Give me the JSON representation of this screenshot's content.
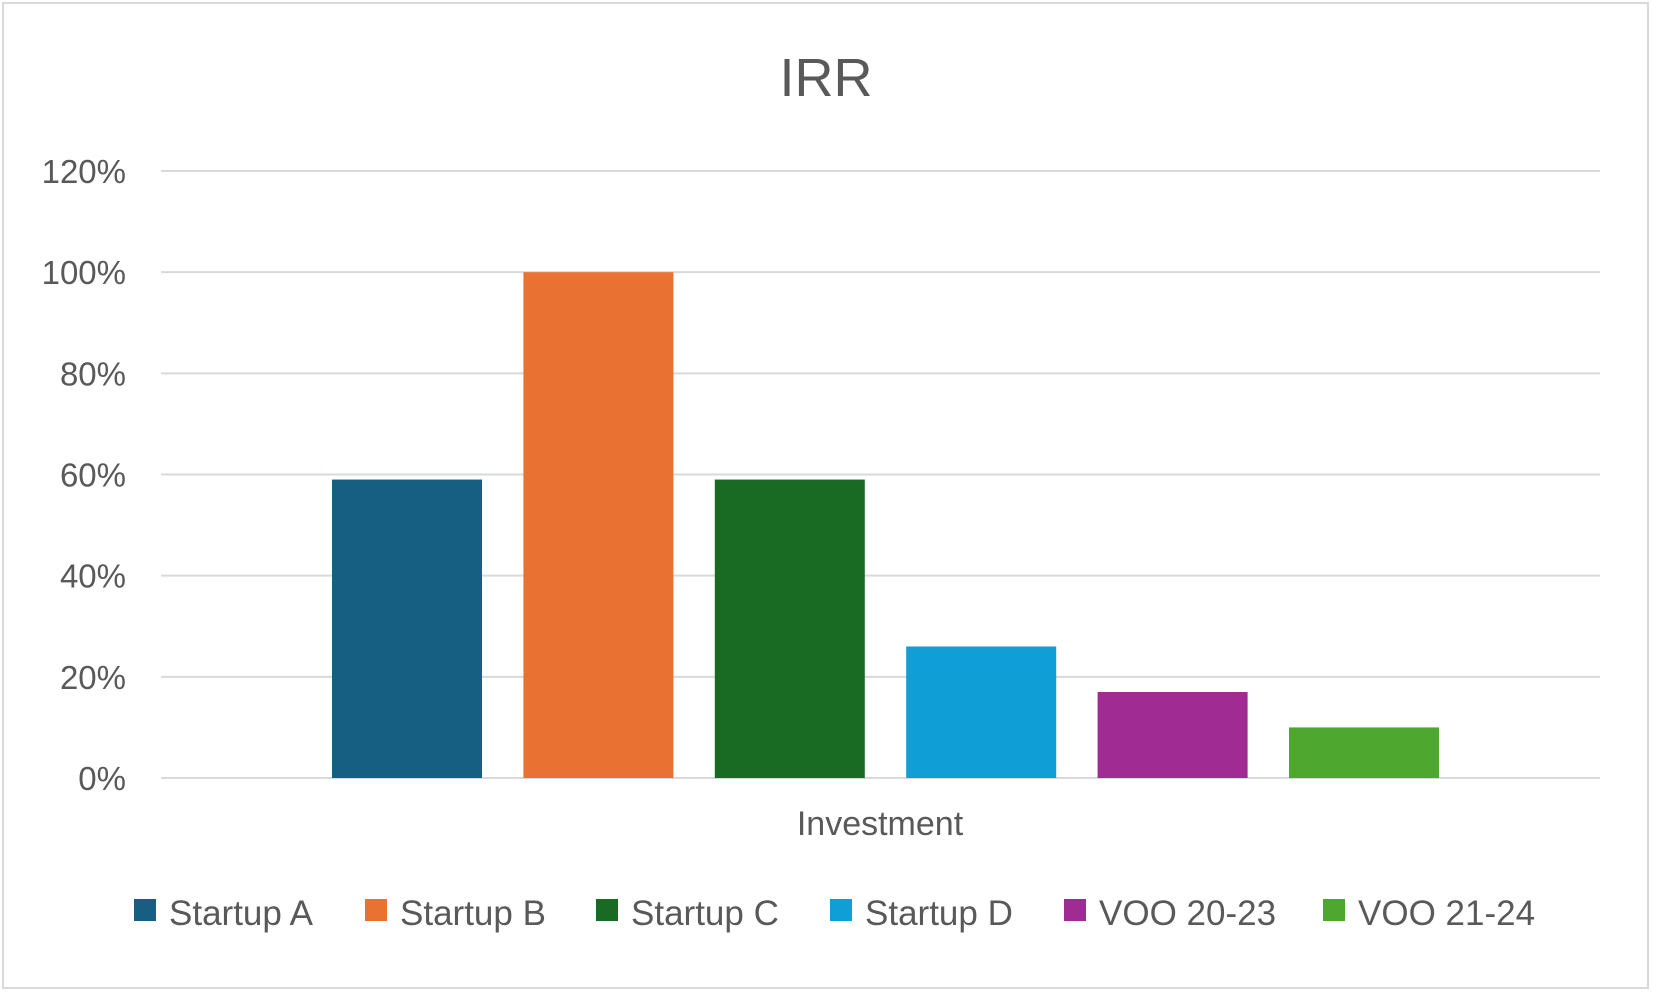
{
  "chart_data": {
    "type": "bar",
    "title": "IRR",
    "xlabel": "Investment",
    "ylabel": "",
    "categories": [
      "Investment"
    ],
    "series": [
      {
        "name": "Startup A",
        "values": [
          0.59
        ],
        "color": "#175f82"
      },
      {
        "name": "Startup B",
        "values": [
          1.0
        ],
        "color": "#e97132"
      },
      {
        "name": "Startup C",
        "values": [
          0.59
        ],
        "color": "#196b24"
      },
      {
        "name": "Startup D",
        "values": [
          0.26
        ],
        "color": "#0f9ed5"
      },
      {
        "name": "VOO 20-23",
        "values": [
          0.17
        ],
        "color": "#a02b93"
      },
      {
        "name": "VOO 21-24",
        "values": [
          0.1
        ],
        "color": "#4ea72e"
      }
    ],
    "ylim": [
      0,
      1.2
    ],
    "yticks": [
      0,
      0.2,
      0.4,
      0.6,
      0.8,
      1.0,
      1.2
    ],
    "ytick_labels": [
      "0%",
      "20%",
      "40%",
      "60%",
      "80%",
      "100%",
      "120%"
    ],
    "grid": true,
    "legend_position": "bottom",
    "gridline_color": "#d9d9d9",
    "text_color": "#595959"
  }
}
